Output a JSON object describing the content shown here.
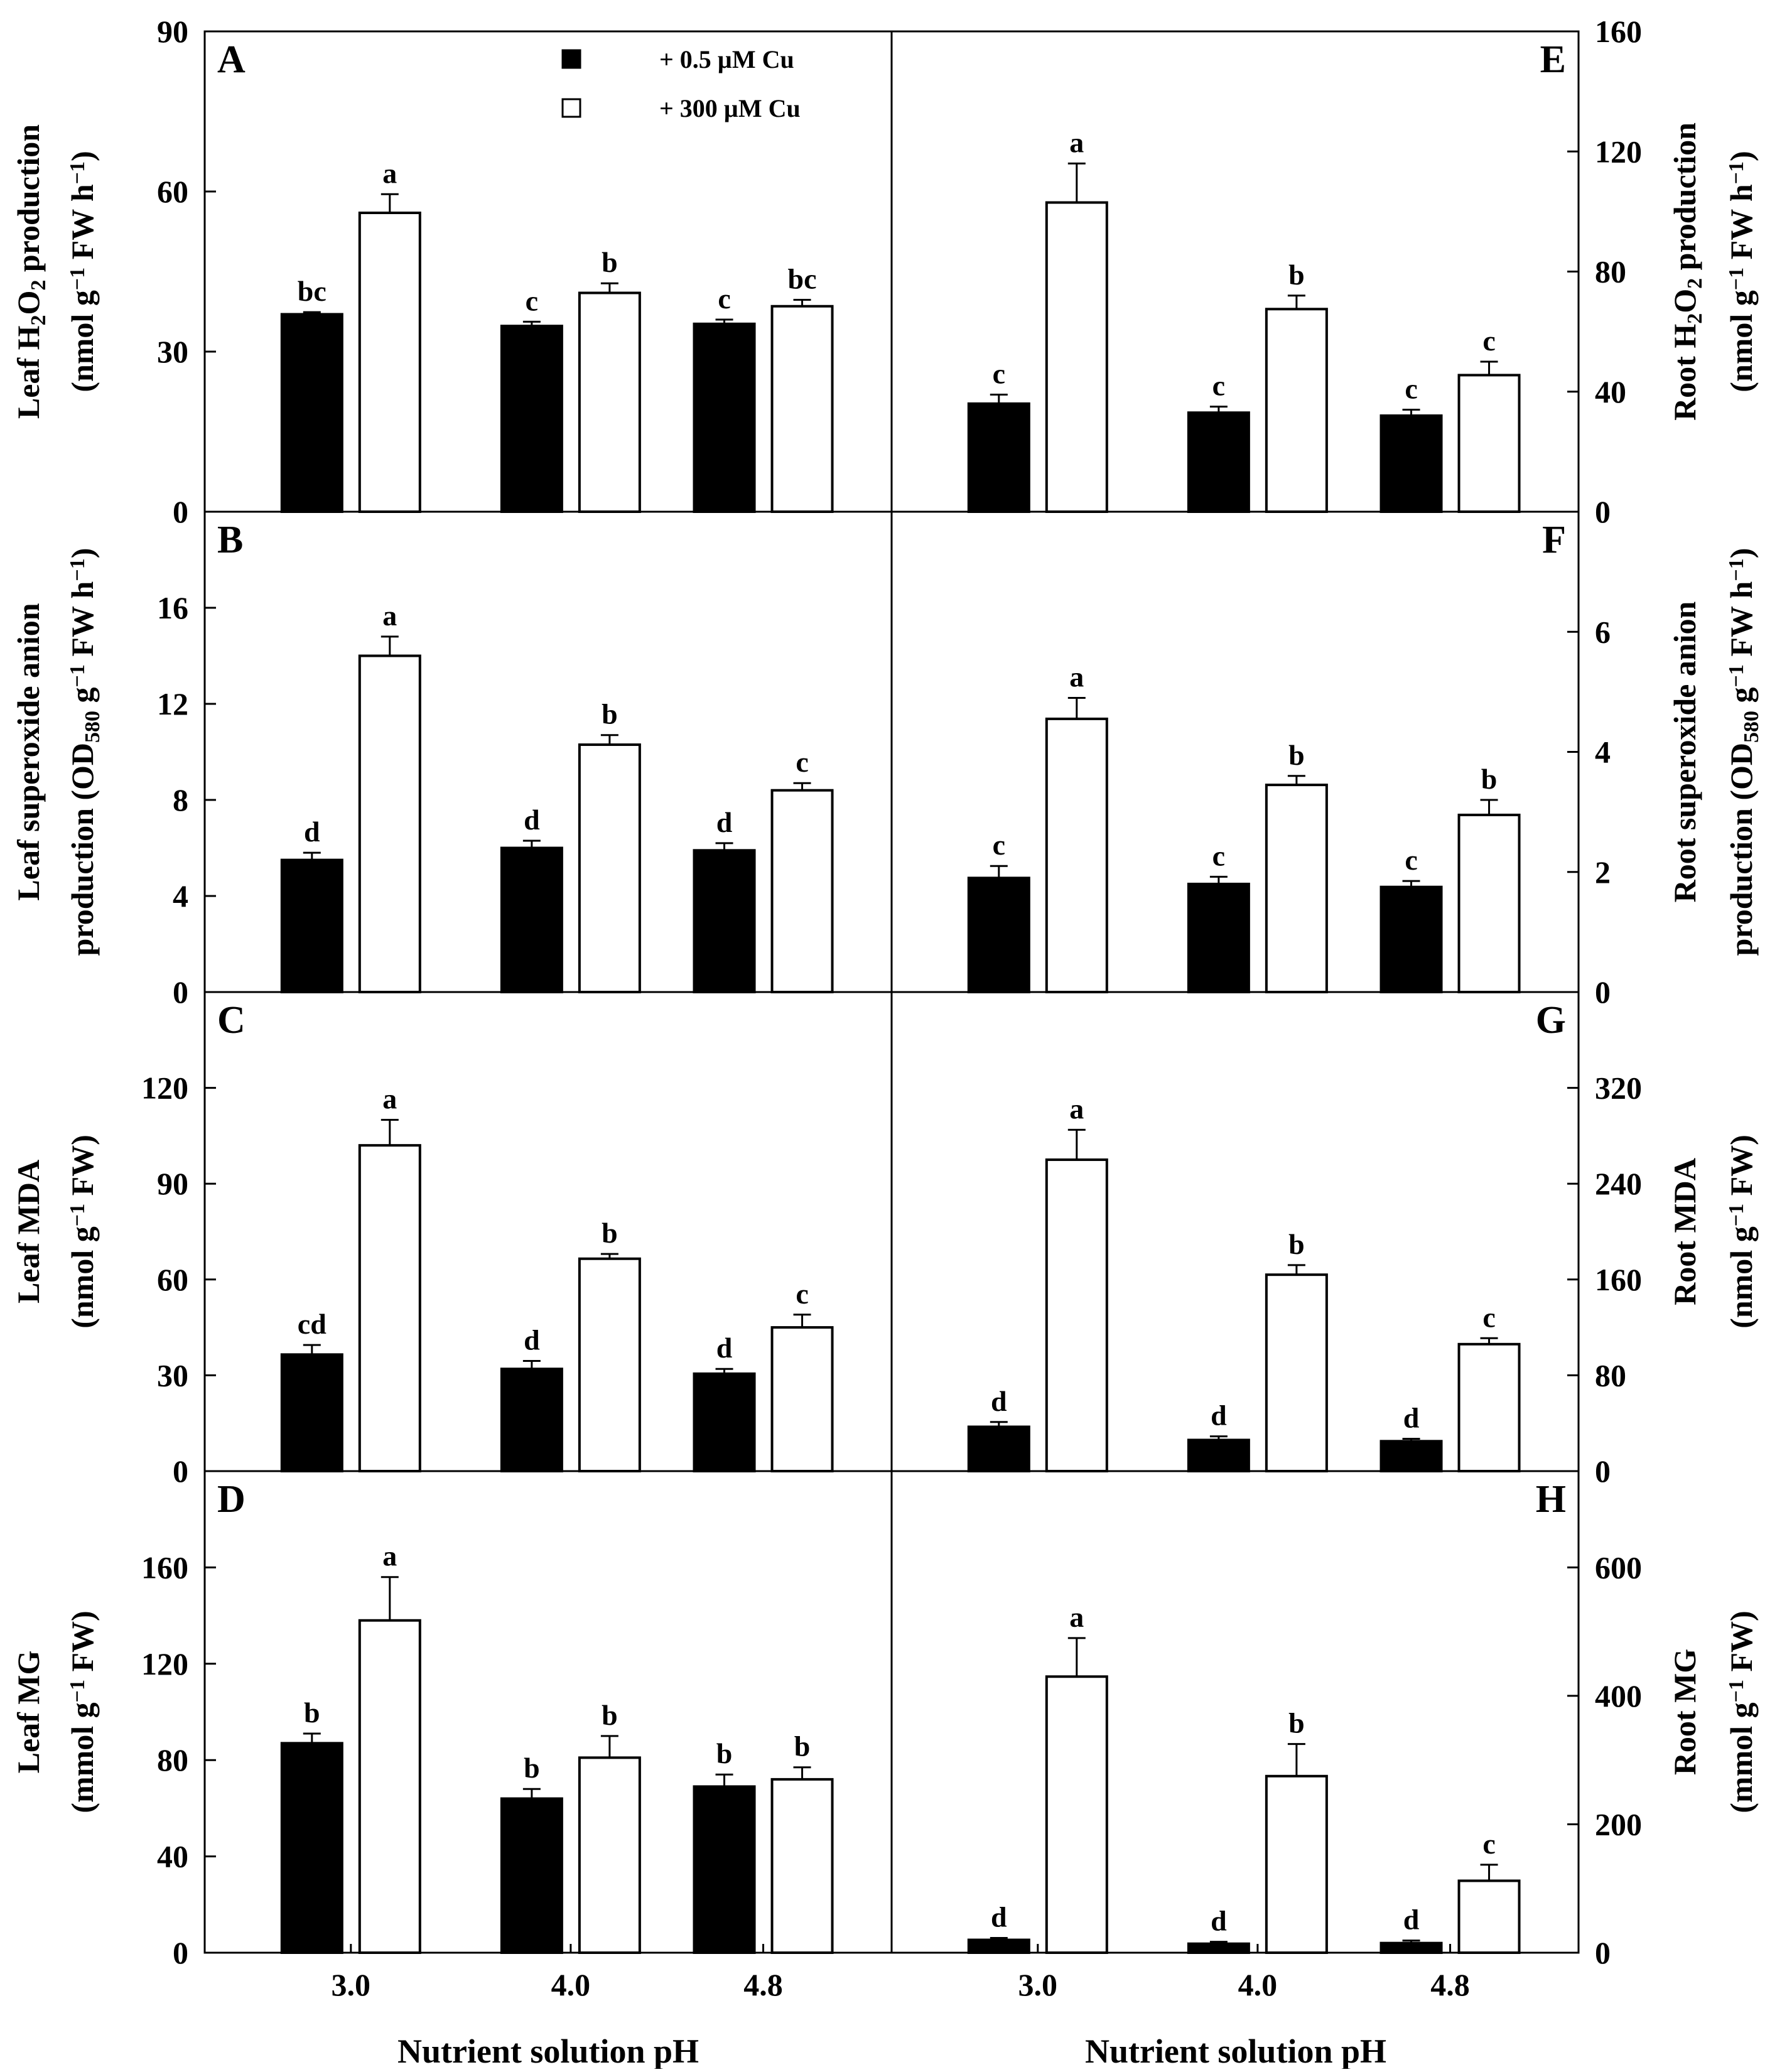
{
  "figure": {
    "x_categories": [
      "3.0",
      "4.0",
      "4.8"
    ],
    "x_label_left": "Nutrient solution pH",
    "x_label_right": "Nutrient solution pH",
    "legend": [
      {
        "label": "+ 0.5 µM Cu",
        "fill": "#000000"
      },
      {
        "label": "+ 300 µM Cu",
        "fill": "#ffffff"
      }
    ]
  },
  "chart_data": [
    {
      "panel": "A",
      "type": "bar",
      "side": "left",
      "row": 0,
      "ylabel_lines": [
        [
          {
            "t": "Leaf H"
          },
          {
            "t": "2",
            "sub": true
          },
          {
            "t": "O"
          },
          {
            "t": "2",
            "sub": true
          },
          {
            "t": " production"
          }
        ],
        [
          {
            "t": "(nmol g"
          },
          {
            "t": "−1",
            "sup": true
          },
          {
            "t": " FW h"
          },
          {
            "t": "−1",
            "sup": true
          },
          {
            "t": ")"
          }
        ]
      ],
      "ylim": [
        0,
        90
      ],
      "yticks": [
        "0",
        "30",
        "60",
        "90"
      ],
      "categories": [
        "3.0",
        "4.0",
        "4.8"
      ],
      "series": [
        {
          "name": "+ 0.5 µM Cu",
          "values": [
            37,
            34.8,
            35.2
          ],
          "errors": [
            0.4,
            0.8,
            0.8
          ],
          "letters": [
            "bc",
            "c",
            "c"
          ]
        },
        {
          "name": "+ 300 µM Cu",
          "values": [
            56,
            41,
            38.5
          ],
          "errors": [
            3.5,
            1.8,
            1.2
          ],
          "letters": [
            "a",
            "b",
            "bc"
          ]
        }
      ]
    },
    {
      "panel": "B",
      "type": "bar",
      "side": "left",
      "row": 1,
      "ylabel_lines": [
        [
          {
            "t": "Leaf superoxide anion"
          }
        ],
        [
          {
            "t": "production (OD"
          },
          {
            "t": "580",
            "sub": true
          },
          {
            "t": " g"
          },
          {
            "t": "−1",
            "sup": true
          },
          {
            "t": " FW h"
          },
          {
            "t": "−1",
            "sup": true
          },
          {
            "t": ")"
          }
        ]
      ],
      "ylim": [
        0,
        20
      ],
      "yticks": [
        "0",
        "4",
        "8",
        "12",
        "16"
      ],
      "categories": [
        "3.0",
        "4.0",
        "4.8"
      ],
      "series": [
        {
          "name": "+ 0.5 µM Cu",
          "values": [
            5.5,
            6.0,
            5.9
          ],
          "errors": [
            0.3,
            0.3,
            0.3
          ],
          "letters": [
            "d",
            "d",
            "d"
          ]
        },
        {
          "name": "+ 300 µM Cu",
          "values": [
            14.0,
            10.3,
            8.4
          ],
          "errors": [
            0.8,
            0.4,
            0.3
          ],
          "letters": [
            "a",
            "b",
            "c"
          ]
        }
      ]
    },
    {
      "panel": "C",
      "type": "bar",
      "side": "left",
      "row": 2,
      "ylabel_lines": [
        [
          {
            "t": "Leaf MDA"
          }
        ],
        [
          {
            "t": "(nmol g"
          },
          {
            "t": "−1",
            "sup": true
          },
          {
            "t": " FW)"
          }
        ]
      ],
      "ylim": [
        0,
        150
      ],
      "yticks": [
        "0",
        "30",
        "60",
        "90",
        "120"
      ],
      "categories": [
        "3.0",
        "4.0",
        "4.8"
      ],
      "series": [
        {
          "name": "+ 0.5 µM Cu",
          "values": [
            36.5,
            32,
            30.5
          ],
          "errors": [
            3,
            2.5,
            1.5
          ],
          "letters": [
            "cd",
            "d",
            "d"
          ]
        },
        {
          "name": "+ 300 µM Cu",
          "values": [
            102,
            66.5,
            45
          ],
          "errors": [
            8,
            1.5,
            4
          ],
          "letters": [
            "a",
            "b",
            "c"
          ]
        }
      ]
    },
    {
      "panel": "D",
      "type": "bar",
      "side": "left",
      "row": 3,
      "ylabel_lines": [
        [
          {
            "t": "Leaf MG"
          }
        ],
        [
          {
            "t": "(mmol g"
          },
          {
            "t": "−1",
            "sup": true
          },
          {
            "t": " FW)"
          }
        ]
      ],
      "ylim": [
        0,
        200
      ],
      "yticks": [
        "0",
        "40",
        "80",
        "120",
        "160"
      ],
      "categories": [
        "3.0",
        "4.0",
        "4.8"
      ],
      "series": [
        {
          "name": "+ 0.5 µM Cu",
          "values": [
            87,
            64,
            69
          ],
          "errors": [
            4,
            4,
            5
          ],
          "letters": [
            "b",
            "b",
            "b"
          ]
        },
        {
          "name": "+ 300 µM Cu",
          "values": [
            138,
            81,
            72
          ],
          "errors": [
            18,
            9,
            5
          ],
          "letters": [
            "a",
            "b",
            "b"
          ]
        }
      ]
    },
    {
      "panel": "E",
      "type": "bar",
      "side": "right",
      "row": 0,
      "ylabel_lines": [
        [
          {
            "t": "Root H"
          },
          {
            "t": "2",
            "sub": true
          },
          {
            "t": "O"
          },
          {
            "t": "2",
            "sub": true
          },
          {
            "t": " production"
          }
        ],
        [
          {
            "t": "(nmol g"
          },
          {
            "t": "−1",
            "sup": true
          },
          {
            "t": " FW h"
          },
          {
            "t": "−1",
            "sup": true
          },
          {
            "t": ")"
          }
        ]
      ],
      "ylim": [
        0,
        160
      ],
      "yticks": [
        "0",
        "40",
        "80",
        "120",
        "160"
      ],
      "categories": [
        "3.0",
        "4.0",
        "4.8"
      ],
      "series": [
        {
          "name": "+ 0.5 µM Cu",
          "values": [
            36,
            33,
            32
          ],
          "errors": [
            3,
            2,
            2
          ],
          "letters": [
            "c",
            "c",
            "c"
          ]
        },
        {
          "name": "+ 300 µM Cu",
          "values": [
            103,
            67.5,
            45.5
          ],
          "errors": [
            13,
            4.5,
            4.5
          ],
          "letters": [
            "a",
            "b",
            "c"
          ]
        }
      ]
    },
    {
      "panel": "F",
      "type": "bar",
      "side": "right",
      "row": 1,
      "ylabel_lines": [
        [
          {
            "t": "Root superoxide anion"
          }
        ],
        [
          {
            "t": "production (OD"
          },
          {
            "t": "580",
            "sub": true
          },
          {
            "t": " g"
          },
          {
            "t": "−1",
            "sup": true
          },
          {
            "t": " FW h"
          },
          {
            "t": "−1",
            "sup": true
          },
          {
            "t": ")"
          }
        ]
      ],
      "ylim": [
        0,
        8
      ],
      "yticks": [
        "0",
        "2",
        "4",
        "6"
      ],
      "categories": [
        "3.0",
        "4.0",
        "4.8"
      ],
      "series": [
        {
          "name": "+ 0.5 µM Cu",
          "values": [
            1.9,
            1.8,
            1.75
          ],
          "errors": [
            0.2,
            0.12,
            0.1
          ],
          "letters": [
            "c",
            "c",
            "c"
          ]
        },
        {
          "name": "+ 300 µM Cu",
          "values": [
            4.55,
            3.45,
            2.95
          ],
          "errors": [
            0.35,
            0.15,
            0.25
          ],
          "letters": [
            "a",
            "b",
            "b"
          ]
        }
      ]
    },
    {
      "panel": "G",
      "type": "bar",
      "side": "right",
      "row": 2,
      "ylabel_lines": [
        [
          {
            "t": "Root MDA"
          }
        ],
        [
          {
            "t": "(nmol g"
          },
          {
            "t": "−1",
            "sup": true
          },
          {
            "t": " FW)"
          }
        ]
      ],
      "ylim": [
        0,
        400
      ],
      "yticks": [
        "0",
        "80",
        "160",
        "240",
        "320"
      ],
      "categories": [
        "3.0",
        "4.0",
        "4.8"
      ],
      "series": [
        {
          "name": "+ 0.5 µM Cu",
          "values": [
            37,
            26,
            25
          ],
          "errors": [
            4,
            3,
            2
          ],
          "letters": [
            "d",
            "d",
            "d"
          ]
        },
        {
          "name": "+ 300 µM Cu",
          "values": [
            260,
            164,
            106
          ],
          "errors": [
            25,
            8,
            5
          ],
          "letters": [
            "a",
            "b",
            "c"
          ]
        }
      ]
    },
    {
      "panel": "H",
      "type": "bar",
      "side": "right",
      "row": 3,
      "ylabel_lines": [
        [
          {
            "t": "Root MG"
          }
        ],
        [
          {
            "t": "(mmol g"
          },
          {
            "t": "−1",
            "sup": true
          },
          {
            "t": " FW)"
          }
        ]
      ],
      "ylim": [
        0,
        750
      ],
      "yticks": [
        "0",
        "200",
        "400",
        "600"
      ],
      "categories": [
        "3.0",
        "4.0",
        "4.8"
      ],
      "series": [
        {
          "name": "+ 0.5 µM Cu",
          "values": [
            20,
            14,
            15
          ],
          "errors": [
            3,
            3,
            4
          ],
          "letters": [
            "d",
            "d",
            "d"
          ]
        },
        {
          "name": "+ 300 µM Cu",
          "values": [
            430,
            275,
            112
          ],
          "errors": [
            60,
            50,
            25
          ],
          "letters": [
            "a",
            "b",
            "c"
          ]
        }
      ]
    }
  ]
}
